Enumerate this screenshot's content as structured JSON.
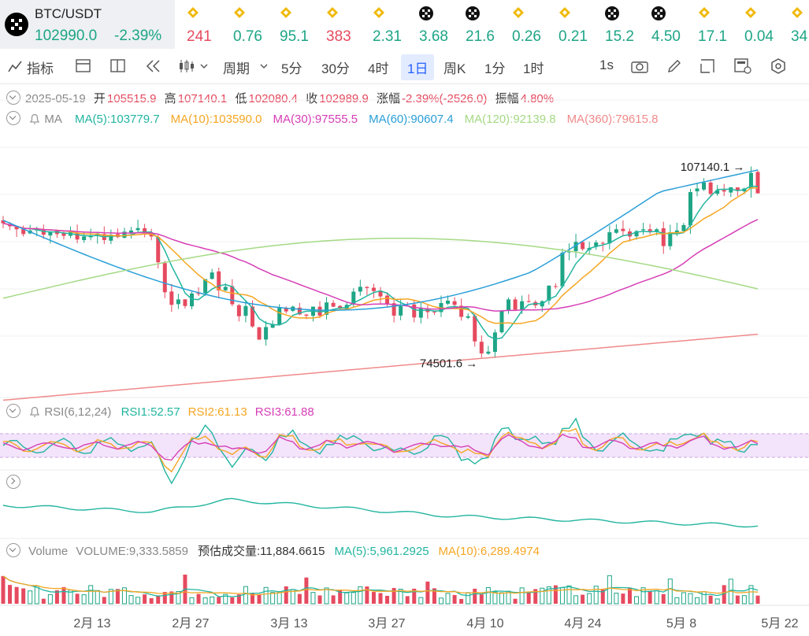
{
  "ticker": {
    "symbol": "BTC/USDT",
    "price": "102990.0",
    "change": "-2.39%",
    "items": [
      {
        "value": "241",
        "dir": "dn",
        "icon": "bnb-icon"
      },
      {
        "value": "0.76",
        "dir": "up",
        "icon": "bnb-icon"
      },
      {
        "value": "95.1",
        "dir": "up",
        "icon": "bnb-icon"
      },
      {
        "value": "383",
        "dir": "dn",
        "icon": "bnb-icon"
      },
      {
        "value": "2.31",
        "dir": "up",
        "icon": "bnb-icon"
      },
      {
        "value": "3.68",
        "dir": "up",
        "icon": "okx-icon"
      },
      {
        "value": "21.6",
        "dir": "up",
        "icon": "okx-icon"
      },
      {
        "value": "0.26",
        "dir": "up",
        "icon": "bnb-icon"
      },
      {
        "value": "0.21",
        "dir": "up",
        "icon": "bnb-icon"
      },
      {
        "value": "15.2",
        "dir": "up",
        "icon": "okx-icon"
      },
      {
        "value": "4.50",
        "dir": "up",
        "icon": "okx-icon"
      },
      {
        "value": "17.1",
        "dir": "up",
        "icon": "bnb-icon"
      },
      {
        "value": "0.04",
        "dir": "up",
        "icon": "bnb-icon"
      },
      {
        "value": "34",
        "dir": "up",
        "icon": "bnb-icon"
      }
    ]
  },
  "toolbar": {
    "indicators": "指标",
    "period": "周期",
    "intervals": [
      "5分",
      "30分",
      "4时",
      "1日",
      "周K",
      "1分",
      "1时"
    ],
    "active": "1日",
    "right_label": "1s"
  },
  "ohlc": {
    "date": "2025-05-19",
    "open_label": "开",
    "open": "105515.9",
    "high_label": "高",
    "high": "107140.1",
    "low_label": "低",
    "low": "102080.4",
    "close_label": "收",
    "close": "102989.9",
    "change_label": "涨幅",
    "change": "-2.39%(-2526.0)",
    "amp_label": "振幅",
    "amp": "4.80%"
  },
  "ma_legend": {
    "label": "MA",
    "items": [
      {
        "text": "MA(5):103779.7",
        "color": "#22b5a0"
      },
      {
        "text": "MA(10):103590.0",
        "color": "#f5a623"
      },
      {
        "text": "MA(30):97555.5",
        "color": "#d63fb6"
      },
      {
        "text": "MA(60):90607.4",
        "color": "#2a9fd8"
      },
      {
        "text": "MA(120):92139.8",
        "color": "#a5d985"
      },
      {
        "text": "MA(360):79615.8",
        "color": "#f08a8a"
      }
    ]
  },
  "annotations": {
    "high": "107140.1",
    "low": "74501.6"
  },
  "rsi": {
    "label": "RSI(6,12,24)",
    "items": [
      {
        "text": "RSI1:52.57",
        "color": "#22b5a0"
      },
      {
        "text": "RSI2:61.13",
        "color": "#f5a623"
      },
      {
        "text": "RSI3:61.88",
        "color": "#d63fb6"
      }
    ]
  },
  "volume": {
    "label": "Volume",
    "items": [
      {
        "text": "VOLUME:9,333.5859",
        "color": "#888"
      },
      {
        "text": "预估成交量:11,884.6615",
        "color": "#333"
      },
      {
        "text": "MA(5):5,961.2925",
        "color": "#22b5a0"
      },
      {
        "text": "MA(10):6,289.4974",
        "color": "#f5a623"
      }
    ]
  },
  "x_axis": [
    "2月 13",
    "2月 27",
    "3月 13",
    "3月 27",
    "4月 10",
    "4月 24",
    "5月 8",
    "5月 22"
  ],
  "colors": {
    "up": "#1ea586",
    "down": "#e64a5f",
    "accent": "#2962ff"
  },
  "chart_data": {
    "type": "candlestick",
    "title": "BTC/USDT 1日",
    "x_ticks": [
      "2月 13",
      "2月 27",
      "3月 13",
      "3月 27",
      "4月 10",
      "4月 24",
      "5月 8",
      "5月 22"
    ],
    "candles_close": [
      98000,
      97500,
      97000,
      96200,
      96800,
      97100,
      96100,
      96600,
      96200,
      95900,
      96500,
      95300,
      95800,
      96000,
      96300,
      95200,
      96100,
      95700,
      96600,
      96800,
      97200,
      96300,
      95800,
      91500,
      86500,
      84400,
      85300,
      84200,
      86300,
      86200,
      88700,
      89800,
      86800,
      87400,
      84500,
      82500,
      84200,
      80800,
      78600,
      80700,
      81200,
      83900,
      83300,
      84100,
      82800,
      82600,
      84100,
      82600,
      84800,
      84100,
      83800,
      84400,
      86600,
      87400,
      87200,
      86700,
      85800,
      84600,
      82600,
      84200,
      84300,
      82300,
      83800,
      83200,
      83200,
      84700,
      85100,
      84400,
      82400,
      82500,
      78300,
      76300,
      76600,
      79800,
      83400,
      85300,
      83600,
      85000,
      84900,
      84300,
      85000,
      87600,
      87400,
      93100,
      93400,
      94900,
      93700,
      93900,
      94800,
      94600,
      96500,
      97000,
      96700,
      95800,
      96700,
      97000,
      96700,
      97000,
      94200,
      96500,
      96800,
      97700,
      103200,
      103800,
      104800,
      102900,
      103500,
      103300,
      104000,
      103500,
      103800,
      106400,
      102990
    ]
  }
}
